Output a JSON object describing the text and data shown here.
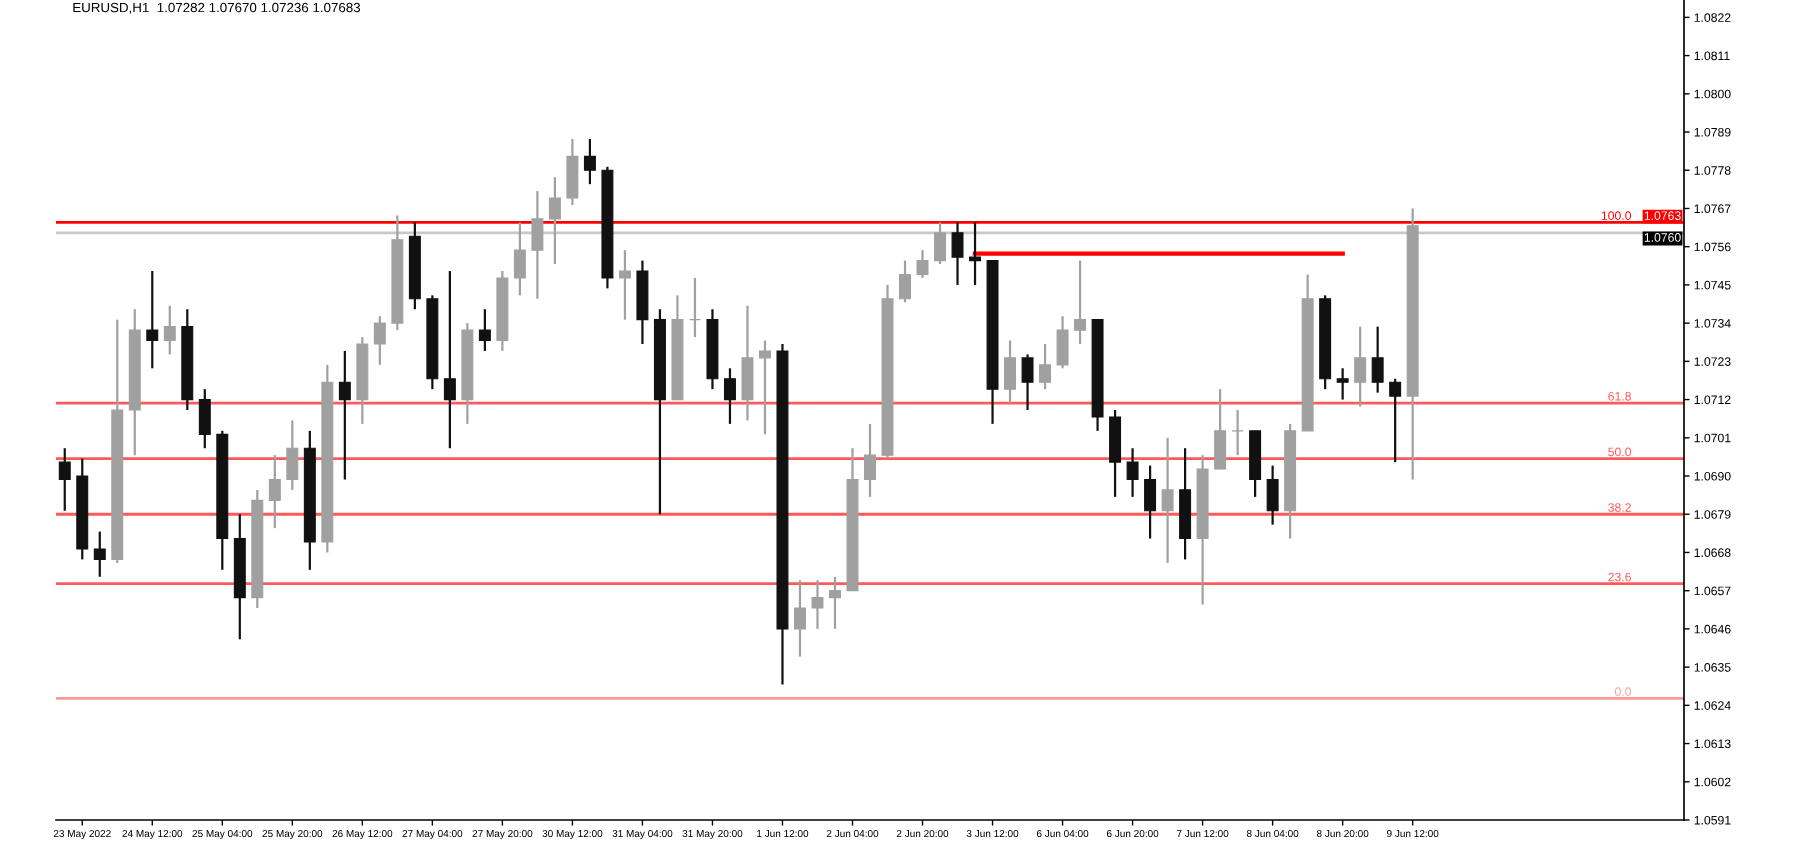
{
  "chart_data": {
    "type": "candlestick",
    "title": "EURUSD,H1  1.07282 1.07670 1.07236 1.07683",
    "categories": [
      null,
      "23 May 2022",
      null,
      null,
      null,
      "24 May 12:00",
      null,
      null,
      null,
      "25 May 04:00",
      null,
      null,
      null,
      "25 May 20:00",
      null,
      null,
      null,
      "26 May 12:00",
      null,
      null,
      null,
      "27 May 04:00",
      null,
      null,
      null,
      "27 May 20:00",
      null,
      null,
      null,
      "30 May 12:00",
      null,
      null,
      null,
      "31 May 04:00",
      null,
      null,
      null,
      "31 May 20:00",
      null,
      null,
      null,
      "1 Jun 12:00",
      null,
      null,
      null,
      "2 Jun 04:00",
      null,
      null,
      null,
      "2 Jun 20:00",
      null,
      null,
      null,
      "3 Jun 12:00",
      null,
      null,
      null,
      "6 Jun 04:00",
      null,
      null,
      null,
      "6 Jun 20:00",
      null,
      null,
      null,
      "7 Jun 12:00",
      null,
      null,
      null,
      "8 Jun 04:00",
      null,
      null,
      null,
      "8 Jun 20:00",
      null,
      null,
      null,
      "9 Jun 12:00",
      null,
      null,
      null,
      null,
      null,
      null,
      null,
      null,
      null,
      null,
      null,
      null,
      null,
      null,
      null
    ],
    "ohlc": [
      [
        1.0694,
        1.0698,
        1.068,
        1.0689
      ],
      [
        1.069,
        1.0695,
        1.0666,
        1.0669
      ],
      [
        1.0669,
        1.0674,
        1.0661,
        1.0666
      ],
      [
        1.0666,
        1.0735,
        1.0665,
        1.0709
      ],
      [
        1.0709,
        1.0738,
        1.0696,
        1.0732
      ],
      [
        1.0732,
        1.0749,
        1.0721,
        1.0729
      ],
      [
        1.0729,
        1.0739,
        1.0725,
        1.0733
      ],
      [
        1.0733,
        1.0738,
        1.0709,
        1.0712
      ],
      [
        1.0712,
        1.0715,
        1.0698,
        1.0702
      ],
      [
        1.0702,
        1.0703,
        1.0663,
        1.0672
      ],
      [
        1.0672,
        1.0679,
        1.0643,
        1.0655
      ],
      [
        1.0655,
        1.0686,
        1.0652,
        1.0683
      ],
      [
        1.0683,
        1.0696,
        1.0675,
        1.0689
      ],
      [
        1.0689,
        1.0706,
        1.0686,
        1.0698
      ],
      [
        1.0698,
        1.0703,
        1.0663,
        1.0671
      ],
      [
        1.0671,
        1.0722,
        1.0668,
        1.0717
      ],
      [
        1.0717,
        1.0726,
        1.0689,
        1.0712
      ],
      [
        1.0712,
        1.073,
        1.0705,
        1.0728
      ],
      [
        1.0728,
        1.0736,
        1.0722,
        1.0734
      ],
      [
        1.0734,
        1.0765,
        1.0732,
        1.0758
      ],
      [
        1.0759,
        1.0763,
        1.0738,
        1.0741
      ],
      [
        1.0741,
        1.0742,
        1.0715,
        1.0718
      ],
      [
        1.0718,
        1.0749,
        1.0698,
        1.0712
      ],
      [
        1.0712,
        1.0734,
        1.0705,
        1.0732
      ],
      [
        1.0732,
        1.0738,
        1.0726,
        1.0729
      ],
      [
        1.0729,
        1.0749,
        1.0726,
        1.0747
      ],
      [
        1.0747,
        1.0763,
        1.0742,
        1.0755
      ],
      [
        1.0755,
        1.0772,
        1.0741,
        1.0764
      ],
      [
        1.0764,
        1.0776,
        1.0751,
        1.077
      ],
      [
        1.077,
        1.0787,
        1.0768,
        1.0782
      ],
      [
        1.0782,
        1.0787,
        1.0774,
        1.0778
      ],
      [
        1.0778,
        1.0779,
        1.0744,
        1.0747
      ],
      [
        1.0747,
        1.0755,
        1.0735,
        1.0749
      ],
      [
        1.0749,
        1.0752,
        1.0728,
        1.0735
      ],
      [
        1.0735,
        1.0738,
        1.0679,
        1.0712
      ],
      [
        1.0712,
        1.0742,
        1.0712,
        1.0735
      ],
      [
        1.0735,
        1.0747,
        1.073,
        1.0735
      ],
      [
        1.0735,
        1.0738,
        1.0715,
        1.0718
      ],
      [
        1.0718,
        1.0721,
        1.0705,
        1.0712
      ],
      [
        1.0712,
        1.0739,
        1.0706,
        1.0724
      ],
      [
        1.0724,
        1.0729,
        1.0702,
        1.0726
      ],
      [
        1.0726,
        1.0728,
        1.063,
        1.0646
      ],
      [
        1.0646,
        1.066,
        1.0638,
        1.0652
      ],
      [
        1.0652,
        1.066,
        1.0646,
        1.0655
      ],
      [
        1.0655,
        1.0661,
        1.0646,
        1.0657
      ],
      [
        1.0657,
        1.0698,
        1.0657,
        1.0689
      ],
      [
        1.0689,
        1.0705,
        1.0684,
        1.0696
      ],
      [
        1.0696,
        1.0745,
        1.0695,
        1.0741
      ],
      [
        1.0741,
        1.0752,
        1.074,
        1.0748
      ],
      [
        1.0748,
        1.0755,
        1.0747,
        1.0752
      ],
      [
        1.0752,
        1.0763,
        1.0751,
        1.076
      ],
      [
        1.076,
        1.0763,
        1.0745,
        1.0753
      ],
      [
        1.0753,
        1.0763,
        1.0745,
        1.0752
      ],
      [
        1.0752,
        1.0752,
        1.0705,
        1.0715
      ],
      [
        1.0715,
        1.0729,
        1.0711,
        1.0724
      ],
      [
        1.0724,
        1.0725,
        1.0709,
        1.0717
      ],
      [
        1.0717,
        1.0728,
        1.0715,
        1.0722
      ],
      [
        1.0722,
        1.0736,
        1.0721,
        1.0732
      ],
      [
        1.0732,
        1.0752,
        1.0728,
        1.0735
      ],
      [
        1.0735,
        1.0735,
        1.0703,
        1.0707
      ],
      [
        1.0707,
        1.0709,
        1.0684,
        1.0694
      ],
      [
        1.0694,
        1.0698,
        1.0684,
        1.0689
      ],
      [
        1.0689,
        1.0693,
        1.0672,
        1.068
      ],
      [
        1.068,
        1.0701,
        1.0665,
        1.0686
      ],
      [
        1.0686,
        1.0698,
        1.0666,
        1.0672
      ],
      [
        1.0672,
        1.0696,
        1.0653,
        1.0692
      ],
      [
        1.0692,
        1.0715,
        1.0692,
        1.0703
      ],
      [
        1.0703,
        1.0709,
        1.0696,
        1.0703
      ],
      [
        1.0703,
        1.0703,
        1.0684,
        1.0689
      ],
      [
        1.0689,
        1.0693,
        1.0676,
        1.068
      ],
      [
        1.068,
        1.0705,
        1.0672,
        1.0703
      ],
      [
        1.0703,
        1.0748,
        1.0703,
        1.0741
      ],
      [
        1.0741,
        1.0742,
        1.0715,
        1.0718
      ],
      [
        1.0718,
        1.0721,
        1.0712,
        1.0717
      ],
      [
        1.0717,
        1.0733,
        1.071,
        1.0724
      ],
      [
        1.0724,
        1.0733,
        1.0714,
        1.0717
      ],
      [
        1.0717,
        1.0718,
        1.0694,
        1.0713
      ],
      [
        1.0713,
        1.0767,
        1.0689,
        1.0762
      ],
      null,
      null,
      null,
      null,
      null,
      null,
      null,
      null,
      null,
      null,
      null,
      null,
      null,
      null,
      null
    ],
    "colors": [
      "#111111",
      "#111111",
      "#111111",
      "#a0a0a0",
      "#a0a0a0",
      "#111111",
      "#a0a0a0",
      "#111111",
      "#111111",
      "#111111",
      "#111111",
      "#a0a0a0",
      "#a0a0a0",
      "#a0a0a0",
      "#111111",
      "#a0a0a0",
      "#111111",
      "#a0a0a0",
      "#a0a0a0",
      "#a0a0a0",
      "#111111",
      "#111111",
      "#111111",
      "#a0a0a0",
      "#111111",
      "#a0a0a0",
      "#a0a0a0",
      "#a0a0a0",
      "#a0a0a0",
      "#a0a0a0",
      "#111111",
      "#111111",
      "#a0a0a0",
      "#111111",
      "#111111",
      "#a0a0a0",
      "#a0a0a0",
      "#111111",
      "#111111",
      "#a0a0a0",
      "#a0a0a0",
      "#111111",
      "#a0a0a0",
      "#a0a0a0",
      "#a0a0a0",
      "#a0a0a0",
      "#a0a0a0",
      "#a0a0a0",
      "#a0a0a0",
      "#a0a0a0",
      "#a0a0a0",
      "#111111",
      "#111111",
      "#111111",
      "#a0a0a0",
      "#111111",
      "#a0a0a0",
      "#a0a0a0",
      "#a0a0a0",
      "#111111",
      "#111111",
      "#111111",
      "#111111",
      "#a0a0a0",
      "#111111",
      "#a0a0a0",
      "#a0a0a0",
      "#a0a0a0",
      "#111111",
      "#111111",
      "#a0a0a0",
      "#a0a0a0",
      "#111111",
      "#111111",
      "#a0a0a0",
      "#111111",
      "#111111",
      "#a0a0a0",
      null,
      null,
      null,
      null,
      null,
      null,
      null,
      null,
      null,
      null,
      null,
      null,
      null,
      null,
      null
    ],
    "series": [
      {
        "type": "line",
        "color": "#ff0000",
        "values": [
          null,
          null,
          null,
          null,
          null,
          null,
          null,
          null,
          null,
          null,
          null,
          null,
          null,
          null,
          null,
          null,
          null,
          null,
          null,
          null,
          null,
          null,
          null,
          null,
          null,
          null,
          null,
          null,
          null,
          null,
          null,
          null,
          null,
          null,
          null,
          null,
          null,
          null,
          null,
          null,
          null,
          null,
          null,
          null,
          null,
          null,
          null,
          null,
          null,
          null,
          null,
          null,
          1.0754,
          1.0754,
          1.0754,
          1.0754,
          1.0754,
          1.0754,
          1.0754,
          1.0754,
          1.0754,
          1.0754,
          1.0754,
          1.0754,
          1.0754,
          1.0754,
          1.0754,
          1.0754,
          1.0754,
          1.0754,
          1.0754,
          1.0754,
          1.0754,
          1.0754,
          null,
          null,
          null,
          null,
          null,
          null,
          null,
          null,
          null,
          null,
          null,
          null,
          null,
          null,
          null,
          null,
          null,
          null,
          null
        ]
      }
    ],
    "ylim": [
      1.0591,
      1.0827
    ],
    "yticks": [
      1.0822,
      1.0811,
      {
        "value": 1.08,
        "label": "1.0800"
      },
      1.0789,
      1.0778,
      1.0767,
      1.0756,
      1.0745,
      1.0734,
      1.0723,
      1.0712,
      1.0701,
      {
        "value": 1.069,
        "label": "1.0690"
      },
      1.0679,
      1.0668,
      1.0657,
      1.0646,
      1.0635,
      1.0624,
      1.0613,
      1.0602,
      1.0591
    ],
    "ref_lines": [
      {
        "axis": "y",
        "value": 1.0763,
        "label": "1.0763",
        "color": "#ff0000"
      },
      {
        "axis": "y",
        "value": 1.076,
        "label": "1.0760",
        "color": "#c8c8c8"
      },
      {
        "axis": "y",
        "value": 1.0711,
        "color": "#ff5a5a"
      },
      {
        "axis": "y",
        "value": 1.0695,
        "color": "#ff5a5a"
      },
      {
        "axis": "y",
        "value": 1.0679,
        "color": "#ff5a5a"
      },
      {
        "axis": "y",
        "value": 1.0659,
        "color": "#ff5a5a"
      },
      {
        "axis": "y",
        "value": 1.0626,
        "color": "#ff9a9a"
      }
    ],
    "annotations": [
      {
        "text": "100.0",
        "y": 1.0763
      },
      {
        "text": "61.8",
        "y": 1.0711
      },
      {
        "text": "50.0",
        "y": 1.0695
      },
      {
        "text": "38.2",
        "y": 1.0679
      },
      {
        "text": "23.6",
        "y": 1.0659
      },
      {
        "text": "0.0",
        "y": 1.0626
      }
    ]
  }
}
